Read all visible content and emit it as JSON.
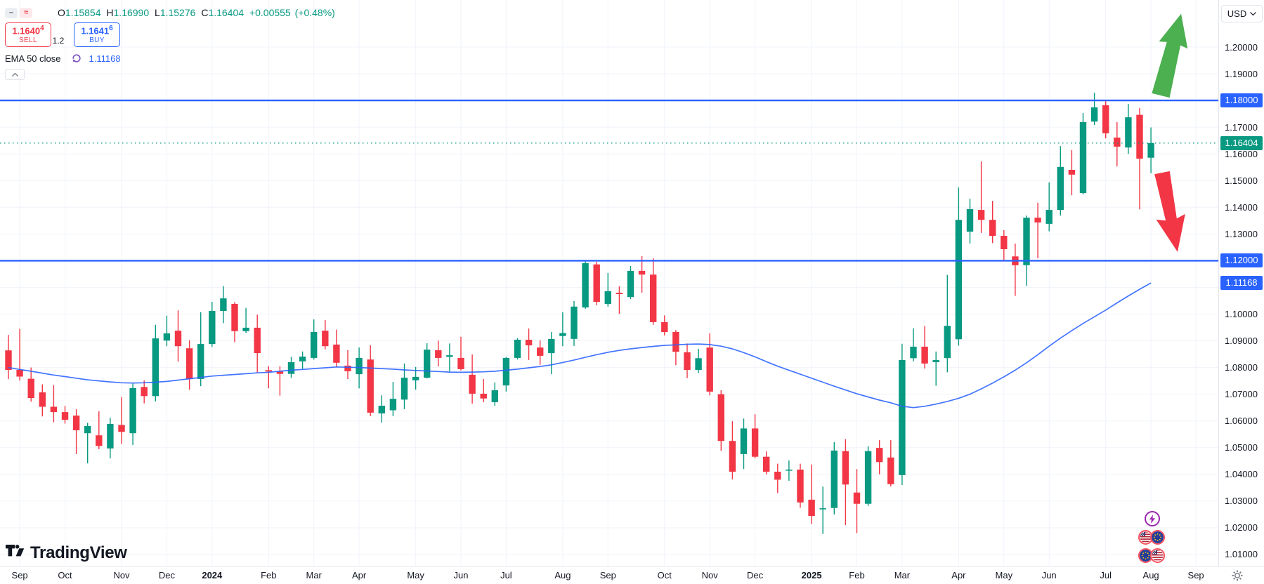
{
  "quote_bar": {
    "ohlc": {
      "open_label": "O",
      "open": "1.15854",
      "high_label": "H",
      "high": "1.16990",
      "low_label": "L",
      "low": "1.15276",
      "close_label": "C",
      "close": "1.16404",
      "change": "+0.00555",
      "change_pct": "(+0.48%)"
    },
    "sell_button": {
      "price": "1.1640",
      "price_sup": "4",
      "label": "SELL"
    },
    "spread": "1.2",
    "buy_button": {
      "price": "1.1641",
      "price_sup": "6",
      "label": "BUY"
    },
    "toggle_minus_glyph": "–",
    "toggle_wave_glyph": "≈"
  },
  "indicator_row": {
    "name": "EMA 50 close",
    "value": "1.11168"
  },
  "watermark": {
    "text": "TradingView"
  },
  "price_axis": {
    "currency": "USD",
    "ticks": [
      "1.20000",
      "1.19000",
      "1.17000",
      "1.16000",
      "1.15000",
      "1.14000",
      "1.13000",
      "1.10000",
      "1.09000",
      "1.08000",
      "1.07000",
      "1.06000",
      "1.05000",
      "1.04000",
      "1.03000",
      "1.02000",
      "1.01000"
    ],
    "badges": [
      {
        "label": "1.18000",
        "value": 1.18,
        "type": "level",
        "color": "#2962ff"
      },
      {
        "label": "1.16404",
        "value": 1.16404,
        "type": "last-price",
        "color": "#089981"
      },
      {
        "label": "1.12000",
        "value": 1.12,
        "type": "level",
        "color": "#2962ff"
      },
      {
        "label": "1.11168",
        "value": 1.11168,
        "type": "indicator",
        "color": "#2962ff"
      }
    ]
  },
  "annotations": {
    "up_arrow_color": "#4caf50",
    "down_arrow_color": "#f23645"
  },
  "event_markers": {
    "lightning_color": "#9c27b0",
    "flag_pairs": [
      [
        "US",
        "EU"
      ],
      [
        "EU",
        "US"
      ]
    ]
  },
  "chart_data": {
    "type": "candlestick",
    "quote_currency": "USD",
    "ylim": [
      1.01,
      1.2
    ],
    "y_step": 0.01,
    "up_color": "#089981",
    "down_color": "#f23645",
    "grid": true,
    "horizontal_levels": [
      {
        "price": 1.18,
        "label": "1.18000",
        "color": "#2962ff"
      },
      {
        "price": 1.12,
        "label": "1.12000",
        "color": "#2962ff"
      }
    ],
    "last_price": {
      "value": 1.16404,
      "label": "1.16404",
      "color": "#089981"
    },
    "x_axis_labels": [
      "Sep",
      "Oct",
      "Nov",
      "Dec",
      "2024",
      "Feb",
      "Mar",
      "Apr",
      "May",
      "Jun",
      "Jul",
      "Aug",
      "Sep",
      "Oct",
      "Nov",
      "Dec",
      "2025",
      "Feb",
      "Mar",
      "Apr",
      "May",
      "Jun",
      "Jul",
      "Aug",
      "Sep"
    ],
    "ema": {
      "name": "EMA 50 close",
      "color": "#2962ff",
      "last_value": 1.11168,
      "values": [
        1.08,
        1.0793,
        1.0786,
        1.0779,
        1.0772,
        1.0766,
        1.076,
        1.0754,
        1.075,
        1.0746,
        1.0743,
        1.0742,
        1.0743,
        1.0745,
        1.0748,
        1.0753,
        1.0758,
        1.0763,
        1.0768,
        1.0771,
        1.0774,
        1.0777,
        1.078,
        1.0782,
        1.0786,
        1.079,
        1.0793,
        1.0796,
        1.0799,
        1.0802,
        1.0801,
        1.08,
        1.0798,
        1.0796,
        1.0794,
        1.0791,
        1.0789,
        1.0787,
        1.0785,
        1.0783,
        1.0782,
        1.0783,
        1.0784,
        1.0786,
        1.079,
        1.0794,
        1.0799,
        1.0804,
        1.081,
        1.0819,
        1.0828,
        1.0838,
        1.0848,
        1.0857,
        1.0864,
        1.087,
        1.0875,
        1.0879,
        1.0883,
        1.0885,
        1.0887,
        1.0888,
        1.0886,
        1.088,
        1.087,
        1.0856,
        1.084,
        1.0822,
        1.0805,
        1.079,
        1.0775,
        1.076,
        1.0745,
        1.073,
        1.0716,
        1.0702,
        1.069,
        1.0678,
        1.0668,
        1.0655,
        1.065,
        1.0655,
        1.0663,
        1.0673,
        1.0685,
        1.07,
        1.072,
        1.0742,
        1.0765,
        1.079,
        1.0818,
        1.0848,
        1.088,
        1.091,
        1.0938,
        1.0965,
        1.099,
        1.1015,
        1.1042,
        1.1068,
        1.1093,
        1.11168
      ]
    },
    "candles": [
      [
        "2023-08-28",
        1.0864,
        1.0922,
        1.0757,
        1.0791
      ],
      [
        "2023-09-04",
        1.0791,
        1.0945,
        1.0751,
        1.0766
      ],
      [
        "2023-09-11",
        1.0758,
        1.08,
        1.0672,
        1.0686
      ],
      [
        "2023-09-18",
        1.0707,
        1.0737,
        1.0617,
        1.0653
      ],
      [
        "2023-09-25",
        1.0653,
        1.0734,
        1.0595,
        1.0633
      ],
      [
        "2023-10-02",
        1.0633,
        1.0656,
        1.059,
        1.0604
      ],
      [
        "2023-10-09",
        1.062,
        1.0644,
        1.0476,
        1.0565
      ],
      [
        "2023-10-16",
        1.0554,
        1.0593,
        1.0441,
        1.0581
      ],
      [
        "2023-10-23",
        1.0546,
        1.0636,
        1.0494,
        1.0506
      ],
      [
        "2023-10-30",
        1.0497,
        1.0612,
        1.046,
        1.0589
      ],
      [
        "2023-11-06",
        1.0585,
        1.0689,
        1.0514,
        1.0559
      ],
      [
        "2023-11-13",
        1.0554,
        1.074,
        1.051,
        1.0723
      ],
      [
        "2023-11-20",
        1.0727,
        1.0752,
        1.0666,
        1.0693
      ],
      [
        "2023-11-27",
        1.0693,
        1.096,
        1.0673,
        1.0909
      ],
      [
        "2023-12-04",
        1.0901,
        1.0994,
        1.088,
        1.0928
      ],
      [
        "2023-12-11",
        1.0938,
        1.1014,
        1.0822,
        1.088
      ],
      [
        "2023-12-18",
        1.0872,
        1.0902,
        1.0717,
        1.0757
      ],
      [
        "2023-12-25",
        1.0757,
        1.1007,
        1.073,
        1.0888
      ],
      [
        "2024-01-01",
        1.0888,
        1.1046,
        1.0877,
        1.1012
      ],
      [
        "2024-01-08",
        1.1012,
        1.1105,
        1.0966,
        1.1059
      ],
      [
        "2024-01-15",
        1.1038,
        1.1045,
        1.0895,
        1.0936
      ],
      [
        "2024-01-22",
        1.0936,
        1.1023,
        1.0929,
        1.0949
      ],
      [
        "2024-01-29",
        1.0949,
        1.0998,
        1.078,
        1.0854
      ],
      [
        "2024-02-05",
        1.079,
        1.0805,
        1.0722,
        1.0785
      ],
      [
        "2024-02-12",
        1.0785,
        1.0805,
        1.0695,
        1.0776
      ],
      [
        "2024-02-19",
        1.0776,
        1.084,
        1.0761,
        1.082
      ],
      [
        "2024-02-26",
        1.0823,
        1.086,
        1.0795,
        1.0841
      ],
      [
        "2024-03-04",
        1.0836,
        1.098,
        1.083,
        1.0933
      ],
      [
        "2024-03-11",
        1.0938,
        1.0978,
        1.0868,
        1.088
      ],
      [
        "2024-03-18",
        1.0886,
        1.0942,
        1.0802,
        1.0818
      ],
      [
        "2024-03-25",
        1.0807,
        1.0865,
        1.0757,
        1.0786
      ],
      [
        "2024-04-01",
        1.0775,
        1.0875,
        1.0722,
        1.0836
      ],
      [
        "2024-04-08",
        1.083,
        1.0883,
        1.0618,
        1.0631
      ],
      [
        "2024-04-15",
        1.0628,
        1.0696,
        1.0594,
        1.0657
      ],
      [
        "2024-04-22",
        1.064,
        1.0746,
        1.0618,
        1.0683
      ],
      [
        "2024-04-29",
        1.068,
        1.0815,
        1.0644,
        1.0762
      ],
      [
        "2024-05-06",
        1.0752,
        1.0802,
        1.0717,
        1.0765
      ],
      [
        "2024-05-13",
        1.0762,
        1.0891,
        1.0759,
        1.0867
      ],
      [
        "2024-05-20",
        1.0865,
        1.0901,
        1.0804,
        1.0836
      ],
      [
        "2024-05-27",
        1.084,
        1.089,
        1.0785,
        1.0846
      ],
      [
        "2024-06-03",
        1.0836,
        1.0915,
        1.0789,
        1.0794
      ],
      [
        "2024-06-10",
        1.0773,
        1.0849,
        1.0665,
        1.0702
      ],
      [
        "2024-06-17",
        1.0702,
        1.0757,
        1.067,
        1.0684
      ],
      [
        "2024-06-24",
        1.067,
        1.0744,
        1.0657,
        1.0715
      ],
      [
        "2024-07-01",
        1.0733,
        1.084,
        1.071,
        1.0836
      ],
      [
        "2024-07-08",
        1.0836,
        1.091,
        1.083,
        1.0904
      ],
      [
        "2024-07-15",
        1.0904,
        1.0946,
        1.0828,
        1.0883
      ],
      [
        "2024-07-22",
        1.0875,
        1.0902,
        1.081,
        1.0844
      ],
      [
        "2024-07-29",
        1.0854,
        1.0933,
        1.0775,
        1.0907
      ],
      [
        "2024-08-05",
        1.0918,
        1.1007,
        1.088,
        1.0929
      ],
      [
        "2024-08-12",
        1.0907,
        1.1049,
        1.0881,
        1.1028
      ],
      [
        "2024-08-19",
        1.1025,
        1.1201,
        1.102,
        1.1191
      ],
      [
        "2024-08-26",
        1.1186,
        1.1196,
        1.1033,
        1.1046
      ],
      [
        "2024-09-02",
        1.1038,
        1.1154,
        1.1028,
        1.1086
      ],
      [
        "2024-09-09",
        1.108,
        1.1104,
        1.1001,
        1.1075
      ],
      [
        "2024-09-16",
        1.1064,
        1.118,
        1.1056,
        1.1162
      ],
      [
        "2024-09-23",
        1.1162,
        1.1217,
        1.108,
        1.1148
      ],
      [
        "2024-09-30",
        1.1148,
        1.1209,
        1.096,
        1.097
      ],
      [
        "2024-10-07",
        1.097,
        1.0995,
        1.092,
        1.0933
      ],
      [
        "2024-10-14",
        1.0933,
        1.094,
        1.0809,
        1.0859
      ],
      [
        "2024-10-21",
        1.0857,
        1.089,
        1.076,
        1.0791
      ],
      [
        "2024-10-28",
        1.0791,
        1.087,
        1.078,
        1.0835
      ],
      [
        "2024-11-04",
        1.0875,
        1.0928,
        1.0696,
        1.071
      ],
      [
        "2024-11-11",
        1.07,
        1.0715,
        1.0488,
        1.0525
      ],
      [
        "2024-11-18",
        1.0525,
        1.0599,
        1.0381,
        1.041
      ],
      [
        "2024-11-25",
        1.0476,
        1.0609,
        1.042,
        1.0572
      ],
      [
        "2024-12-02",
        1.0572,
        1.0625,
        1.046,
        1.0466
      ],
      [
        "2024-12-09",
        1.0466,
        1.0486,
        1.04,
        1.041
      ],
      [
        "2024-12-16",
        1.041,
        1.044,
        1.033,
        1.038
      ],
      [
        "2024-12-23",
        1.0415,
        1.0452,
        1.0376,
        1.0418
      ],
      [
        "2024-12-30",
        1.0418,
        1.044,
        1.0275,
        1.0295
      ],
      [
        "2025-01-06",
        1.0305,
        1.0437,
        1.0214,
        1.0244
      ],
      [
        "2025-01-13",
        1.0272,
        1.0354,
        1.0177,
        1.0273
      ],
      [
        "2025-01-20",
        1.0274,
        1.0521,
        1.025,
        1.0489
      ],
      [
        "2025-01-27",
        1.0487,
        1.0532,
        1.021,
        1.0362
      ],
      [
        "2025-02-03",
        1.0332,
        1.042,
        1.018,
        1.029
      ],
      [
        "2025-02-10",
        1.029,
        1.0505,
        1.0282,
        1.0487
      ],
      [
        "2025-02-17",
        1.0499,
        1.0528,
        1.04,
        1.0446
      ],
      [
        "2025-02-24",
        1.0463,
        1.0528,
        1.0355,
        1.0363
      ],
      [
        "2025-03-03",
        1.0397,
        1.0889,
        1.036,
        1.0828
      ],
      [
        "2025-03-10",
        1.0835,
        1.0947,
        1.0823,
        1.0878
      ],
      [
        "2025-03-17",
        1.0878,
        1.0955,
        1.0796,
        1.0815
      ],
      [
        "2025-03-24",
        1.082,
        1.086,
        1.0732,
        1.0828
      ],
      [
        "2025-03-31",
        1.0835,
        1.1147,
        1.0782,
        1.0956
      ],
      [
        "2025-04-07",
        1.0906,
        1.1474,
        1.0882,
        1.1353
      ],
      [
        "2025-04-14",
        1.1309,
        1.1432,
        1.1264,
        1.1393
      ],
      [
        "2025-04-21",
        1.139,
        1.1572,
        1.1304,
        1.1353
      ],
      [
        "2025-04-28",
        1.1353,
        1.1424,
        1.1266,
        1.1293
      ],
      [
        "2025-05-05",
        1.1293,
        1.1314,
        1.1197,
        1.1243
      ],
      [
        "2025-05-12",
        1.1216,
        1.1264,
        1.1068,
        1.1183
      ],
      [
        "2025-05-19",
        1.1183,
        1.1369,
        1.1106,
        1.1361
      ],
      [
        "2025-05-26",
        1.1361,
        1.1417,
        1.1209,
        1.1343
      ],
      [
        "2025-06-02",
        1.1338,
        1.1493,
        1.131,
        1.139
      ],
      [
        "2025-06-09",
        1.139,
        1.1629,
        1.1369,
        1.1551
      ],
      [
        "2025-06-16",
        1.154,
        1.1614,
        1.1445,
        1.1522
      ],
      [
        "2025-06-23",
        1.1453,
        1.1753,
        1.1448,
        1.1719
      ],
      [
        "2025-06-30",
        1.1721,
        1.1829,
        1.1708,
        1.1774
      ],
      [
        "2025-07-07",
        1.1782,
        1.18,
        1.1658,
        1.1677
      ],
      [
        "2025-07-14",
        1.1661,
        1.1719,
        1.1553,
        1.1627
      ],
      [
        "2025-07-21",
        1.1624,
        1.1787,
        1.16,
        1.1737
      ],
      [
        "2025-07-28",
        1.1746,
        1.1771,
        1.1392,
        1.1582
      ],
      [
        "2025-08-04",
        1.15854,
        1.1699,
        1.15276,
        1.16404
      ]
    ]
  }
}
